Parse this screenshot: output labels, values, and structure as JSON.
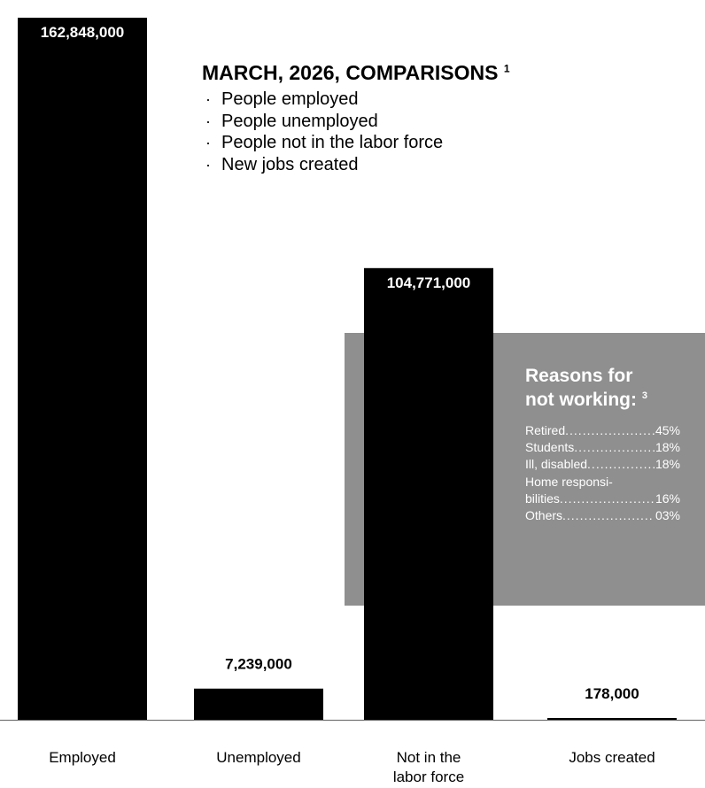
{
  "chart_data": {
    "type": "bar",
    "categories": [
      "Employed",
      "Unemployed",
      "Not in the\nlabor force",
      "Jobs created"
    ],
    "values": [
      162848000,
      7239000,
      104771000,
      178000
    ],
    "value_labels": [
      "162,848,000",
      "7,239,000",
      "104,771,000",
      "178,000"
    ],
    "title": "MARCH, 2026, COMPARISONS",
    "title_note": "1",
    "legend_items": [
      "People employed",
      "People unemployed",
      "People not in the labor force",
      "New jobs created"
    ],
    "bar_color": "#000000"
  },
  "reasons": {
    "title_line1": "Reasons for",
    "title_line2": "not working:",
    "note": "3",
    "panel_color": "#8f8f8f",
    "items": [
      {
        "label": "Retired",
        "value": "45%"
      },
      {
        "label": "Students",
        "value": "18%"
      },
      {
        "label": "Ill, disabled",
        "value": "18%"
      },
      {
        "label_line1": "Home responsi-",
        "label": "bilities",
        "value": "16%"
      },
      {
        "label": "Others",
        "value": "03%"
      }
    ]
  }
}
